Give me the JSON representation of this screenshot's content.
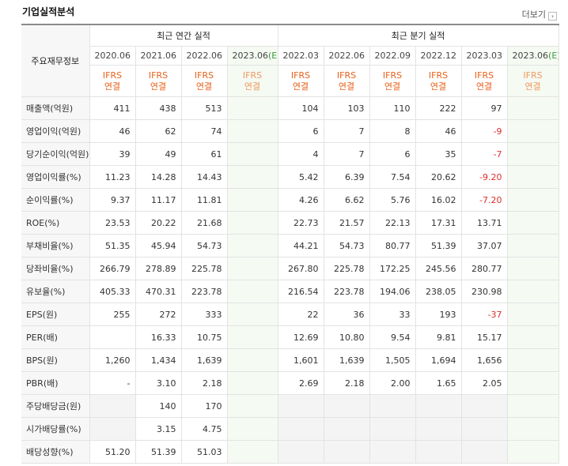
{
  "header": {
    "title": "기업실적분석",
    "more": "더보기"
  },
  "table": {
    "corner": "주요재무정보",
    "groups": [
      {
        "label": "최근 연간 실적",
        "columns": [
          {
            "date": "2020.06",
            "basis": [
              "IFRS",
              "연결"
            ]
          },
          {
            "date": "2021.06",
            "basis": [
              "IFRS",
              "연결"
            ]
          },
          {
            "date": "2022.06",
            "basis": [
              "IFRS",
              "연결"
            ]
          },
          {
            "date": "2023.06",
            "estimate": "(E)",
            "basis": [
              "IFRS",
              "연결"
            ]
          }
        ]
      },
      {
        "label": "최근 분기 실적",
        "columns": [
          {
            "date": "2022.03",
            "basis": [
              "IFRS",
              "연결"
            ]
          },
          {
            "date": "2022.06",
            "basis": [
              "IFRS",
              "연결"
            ]
          },
          {
            "date": "2022.09",
            "basis": [
              "IFRS",
              "연결"
            ]
          },
          {
            "date": "2022.12",
            "basis": [
              "IFRS",
              "연결"
            ]
          },
          {
            "date": "2023.03",
            "basis": [
              "IFRS",
              "연결"
            ]
          },
          {
            "date": "2023.06",
            "estimate": "(E)",
            "basis": [
              "IFRS",
              "연결"
            ]
          }
        ]
      }
    ],
    "sections": [
      [
        {
          "label": "매출액(억원)",
          "values": [
            "411",
            "438",
            "513",
            null,
            "104",
            "103",
            "110",
            "222",
            "97",
            null
          ]
        },
        {
          "label": "영업이익(억원)",
          "values": [
            "46",
            "62",
            "74",
            null,
            "6",
            "7",
            "8",
            "46",
            "-9",
            null
          ]
        },
        {
          "label": "당기순이익(억원)",
          "values": [
            "39",
            "49",
            "61",
            null,
            "4",
            "7",
            "6",
            "35",
            "-7",
            null
          ]
        }
      ],
      [
        {
          "label": "영업이익률(%)",
          "values": [
            "11.23",
            "14.28",
            "14.43",
            null,
            "5.42",
            "6.39",
            "7.54",
            "20.62",
            "-9.20",
            null
          ]
        },
        {
          "label": "순이익률(%)",
          "values": [
            "9.37",
            "11.17",
            "11.81",
            null,
            "4.26",
            "6.62",
            "5.76",
            "16.02",
            "-7.20",
            null
          ]
        },
        {
          "label": "ROE(%)",
          "values": [
            "23.53",
            "20.22",
            "21.68",
            null,
            "22.73",
            "21.57",
            "22.13",
            "17.31",
            "13.71",
            null
          ]
        }
      ],
      [
        {
          "label": "부채비율(%)",
          "values": [
            "51.35",
            "45.94",
            "54.73",
            null,
            "44.21",
            "54.73",
            "80.77",
            "51.39",
            "37.07",
            null
          ]
        },
        {
          "label": "당좌비율(%)",
          "values": [
            "266.79",
            "278.89",
            "225.78",
            null,
            "267.80",
            "225.78",
            "172.25",
            "245.56",
            "280.77",
            null
          ]
        },
        {
          "label": "유보율(%)",
          "values": [
            "405.33",
            "470.31",
            "223.78",
            null,
            "216.54",
            "223.78",
            "194.06",
            "238.05",
            "230.98",
            null
          ]
        }
      ],
      [
        {
          "label": "EPS(원)",
          "values": [
            "255",
            "272",
            "333",
            null,
            "22",
            "36",
            "33",
            "193",
            "-37",
            null
          ]
        },
        {
          "label": "PER(배)",
          "values": [
            null,
            "16.33",
            "10.75",
            null,
            "12.69",
            "10.80",
            "9.54",
            "9.81",
            "15.17",
            null
          ]
        },
        {
          "label": "BPS(원)",
          "values": [
            "1,260",
            "1,434",
            "1,639",
            null,
            "1,601",
            "1,639",
            "1,505",
            "1,694",
            "1,656",
            null
          ]
        },
        {
          "label": "PBR(배)",
          "values": [
            "-",
            "3.10",
            "2.18",
            null,
            "2.69",
            "2.18",
            "2.00",
            "1.65",
            "2.05",
            null
          ]
        }
      ],
      [
        {
          "label": "주당배당금(원)",
          "values": [
            null,
            "140",
            "170",
            null,
            null,
            null,
            null,
            null,
            null,
            null
          ]
        },
        {
          "label": "시가배당률(%)",
          "values": [
            null,
            "3.15",
            "4.75",
            null,
            null,
            null,
            null,
            null,
            null,
            null
          ]
        },
        {
          "label": "배당성향(%)",
          "values": [
            "51.20",
            "51.39",
            "51.03",
            null,
            null,
            null,
            null,
            null,
            null,
            null
          ]
        }
      ]
    ]
  }
}
